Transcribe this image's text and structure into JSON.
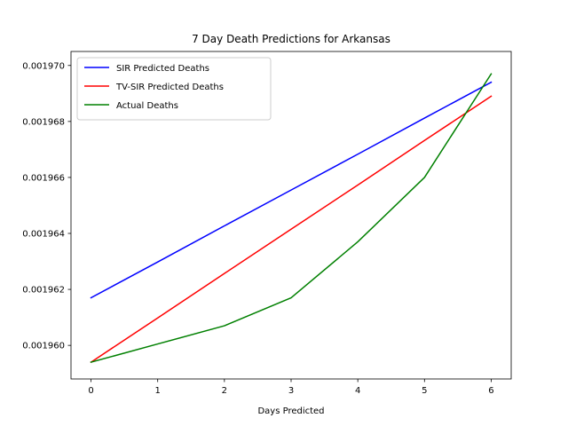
{
  "chart_data": {
    "type": "line",
    "title": "7 Day Death Predictions for Arkansas",
    "xlabel": "Days Predicted",
    "ylabel": "",
    "x": [
      0,
      1,
      2,
      3,
      4,
      5,
      6
    ],
    "xlim": [
      -0.3,
      6.3
    ],
    "ylim": [
      0.0019588,
      0.0019705
    ],
    "xticks": [
      0,
      1,
      2,
      3,
      4,
      5,
      6
    ],
    "yticks": [
      0.00196,
      0.001962,
      0.001964,
      0.001966,
      0.001968,
      0.00197
    ],
    "ytick_labels": [
      "0.001960",
      "0.001962",
      "0.001964",
      "0.001966",
      "0.001968",
      "0.001970"
    ],
    "grid": false,
    "legend_position": "top-left",
    "series": [
      {
        "name": "SIR Predicted Deaths",
        "color": "#0000ff",
        "values": [
          0.0019617,
          0.00196298,
          0.00196427,
          0.00196555,
          0.00196683,
          0.00196812,
          0.0019694
        ]
      },
      {
        "name": "TV-SIR Predicted Deaths",
        "color": "#ff0000",
        "values": [
          0.0019594,
          0.00196098,
          0.00196257,
          0.00196415,
          0.00196573,
          0.00196732,
          0.0019689
        ]
      },
      {
        "name": "Actual Deaths",
        "color": "#008000",
        "values": [
          0.0019594,
          0.00196005,
          0.0019607,
          0.0019617,
          0.0019637,
          0.001966,
          0.0019697
        ]
      }
    ]
  }
}
